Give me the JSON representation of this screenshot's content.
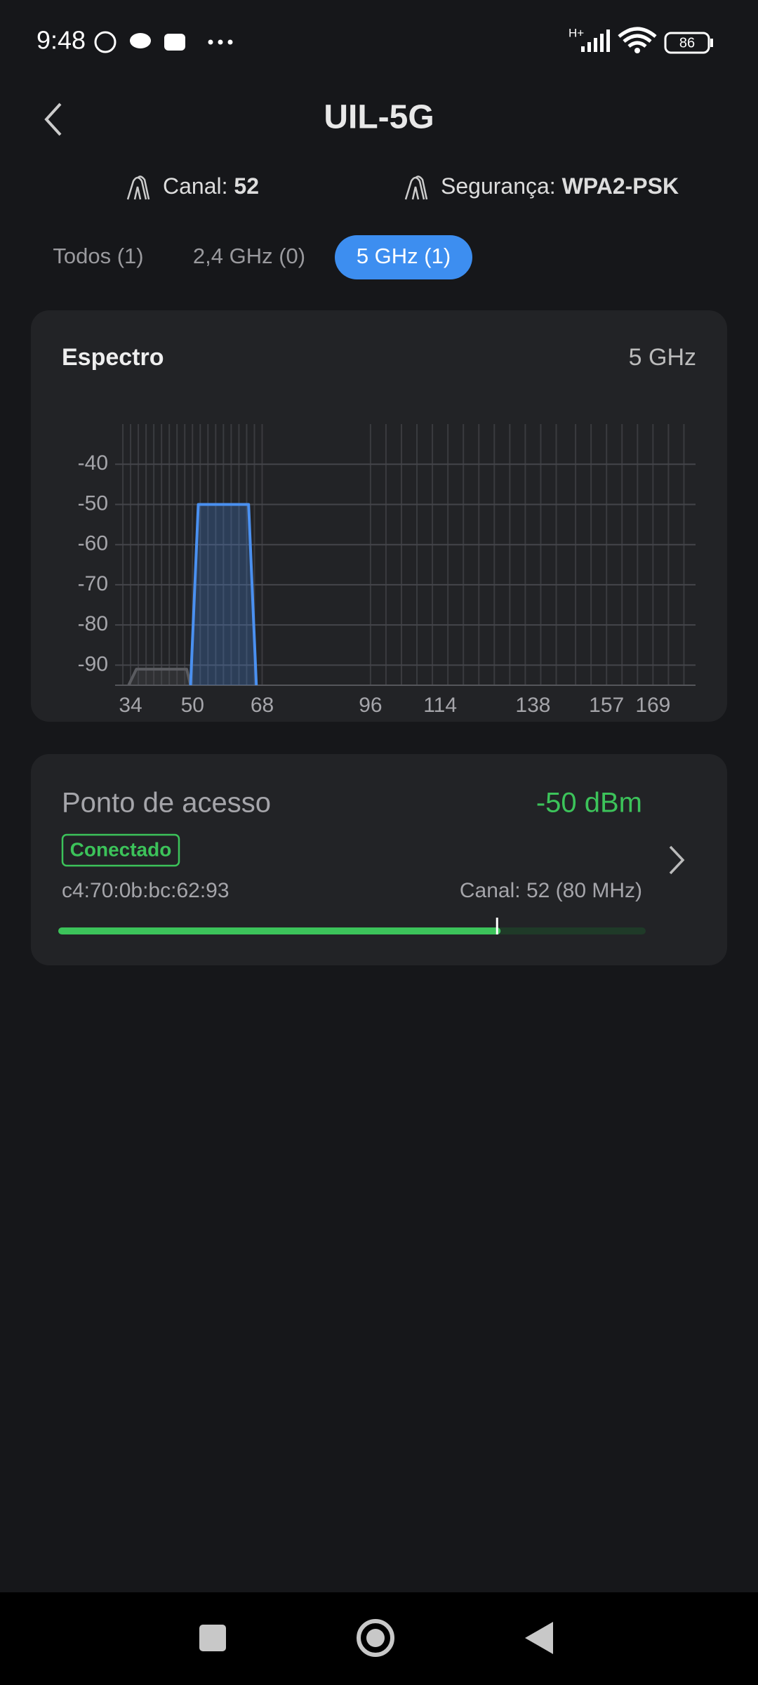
{
  "status_bar": {
    "time": "9:48",
    "network": "H+",
    "battery": "86"
  },
  "header": {
    "title": "UIL-5G"
  },
  "info": {
    "channel_label": "Canal:",
    "channel": "52",
    "security_label": "Segurança:",
    "security": "WPA2-PSK"
  },
  "tabs": [
    "Todos (1)",
    "2,4 GHz (0)",
    "5 GHz (1)"
  ],
  "spectrum_card": {
    "title": "Espectro",
    "band": "5 GHz",
    "chart_data": {
      "type": "area",
      "xlim": [
        30,
        180
      ],
      "ylim": [
        -95,
        -30
      ],
      "xticks": [
        34,
        50,
        68,
        96,
        114,
        138,
        157,
        169
      ],
      "yticks": [
        -40,
        -50,
        -60,
        -70,
        -80,
        -90
      ],
      "xgrid": [
        32,
        34,
        36,
        38,
        40,
        42,
        44,
        46,
        48,
        50,
        52,
        54,
        56,
        58,
        60,
        62,
        64,
        66,
        68,
        96,
        100,
        104,
        108,
        112,
        116,
        120,
        124,
        128,
        132,
        136,
        140,
        144,
        149,
        153,
        157,
        161,
        165,
        169,
        173,
        177
      ],
      "grid": true,
      "series": [
        {
          "color": "#5a5b60",
          "x": [
            33.5,
            35.5,
            48.5,
            49.5
          ],
          "values": [
            -95,
            -91,
            -91,
            -95
          ]
        },
        {
          "color": "#4a90f0",
          "x": [
            49.5,
            51.5,
            64.5,
            66.5
          ],
          "values": [
            -95,
            -50,
            -50,
            -95
          ]
        }
      ]
    }
  },
  "access_point": {
    "title": "Ponto de acesso",
    "signal": "-50 dBm",
    "status": "Conectado",
    "mac": "c4:70:0b:bc:62:93",
    "channel": "Canal: 52 (80 MHz)",
    "bar_lim": [
      0,
      100
    ],
    "bar_value": 75
  }
}
